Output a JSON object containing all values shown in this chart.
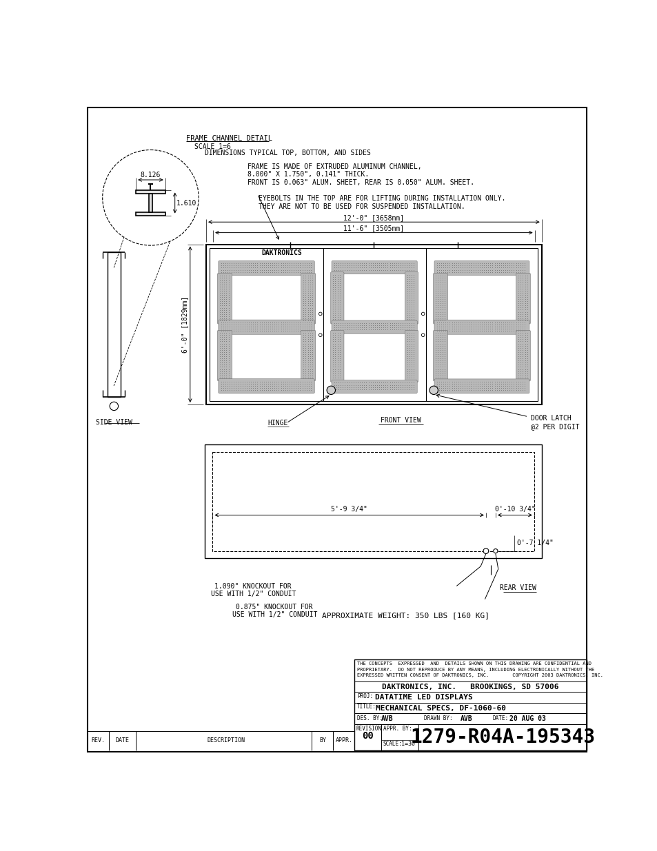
{
  "bg_color": "#ffffff",
  "line_color": "#000000",
  "title_block": {
    "confidential": "THE CONCEPTS  EXPRESSED  AND  DETAILS SHOWN ON THIS DRAWING ARE CONFIDENTIAL AND\nPROPRIETARY.  DO NOT REPRODUCE BY ANY MEANS, INCLUDING ELECTRONICALLY WITHOUT THE\nEXPRESSED WRITTEN CONSENT OF DAKTRONICS, INC.        COPYRIGHT 2003 DAKTRONICS, INC.",
    "company": "DAKTRONICS, INC.   BROOKINGS, SD 57006",
    "proj_label": "PROJ:",
    "proj": "DATATIME LED DISPLAYS",
    "title_label": "TITLE:",
    "title": "MECHANICAL SPECS, DF-1060-60",
    "des_label": "DES. BY:",
    "des": "AVB",
    "drawn_label": "DRAWN BY:",
    "drawn": "AVB",
    "date_label": "DATE:",
    "date": "20 AUG 03",
    "revision_label": "REVISION",
    "revision": "00",
    "appr_label": "APPR. BY:",
    "scale_label": "SCALE:",
    "scale": "1=30",
    "drawing_num": "1279-R04A-195343"
  },
  "frame_detail": {
    "title": "FRAME CHANNEL DETAIL",
    "scale": "SCALE 1=6",
    "dim_note": "DIMENSIONS TYPICAL TOP, BOTTOM, AND SIDES"
  },
  "notes": {
    "frame_note": "FRAME IS MADE OF EXTRUDED ALUMINUM CHANNEL,\n8.000\" X 1.750\", 0.141\" THICK.\nFRONT IS 0.063\" ALUM. SHEET, REAR IS 0.050\" ALUM. SHEET.",
    "eyebolt_note": "EYEBOLTS IN THE TOP ARE FOR LIFTING DURING INSTALLATION ONLY.\nTHEY ARE NOT TO BE USED FOR SUSPENDED INSTALLATION.",
    "weight_note": "APPROXIMATE WEIGHT: 350 LBS [160 KG]"
  },
  "front_view": {
    "width_dim1": "12'-0\" [3658mm]",
    "width_dim2": "11'-6\" [3505mm]",
    "height_dim": "6'-0\" [1829mm]",
    "label": "FRONT VIEW",
    "hinge": "HINGE",
    "door_latch": "DOOR LATCH\n@2 PER DIGIT",
    "daktronics_label": "DAKTRONICS"
  },
  "rear_view": {
    "label": "REAR VIEW",
    "dim1": "5'-9 3/4\"",
    "dim2": "0'-10 3/4\"",
    "dim3": "0'-7 1/4\"",
    "knockout1": "1.090\" KNOCKOUT FOR\nUSE WITH 1/2\" CONDUIT",
    "knockout2": "0.875\" KNOCKOUT FOR\nUSE WITH 1/2\" CONDUIT"
  },
  "side_view": {
    "label": "SIDE VIEW"
  }
}
